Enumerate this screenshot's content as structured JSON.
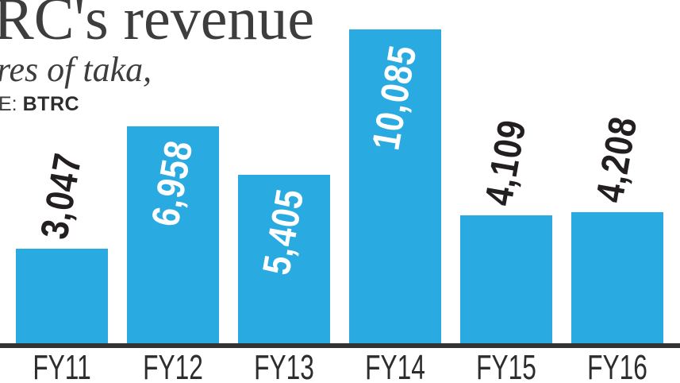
{
  "colors": {
    "bar": "#29abe2",
    "axis": "#333333",
    "title_text": "#3d3d3d",
    "value_label_dark": "#231f20",
    "value_label_light": "#ffffff",
    "category_label": "#2d2d2d"
  },
  "chart_data": {
    "type": "bar",
    "title": "RC's revenue",
    "subtitle": "res of taka,",
    "source_prefix": "E:",
    "source_name": "BTRC",
    "categories": [
      "FY11",
      "FY12",
      "FY13",
      "FY14",
      "FY15",
      "FY16"
    ],
    "values": [
      3047,
      6958,
      5405,
      10085,
      4109,
      4208
    ],
    "value_labels": [
      "3,047",
      "6,958",
      "5,405",
      "10,085",
      "4,109",
      "4,208"
    ],
    "label_inside": [
      false,
      true,
      true,
      true,
      false,
      false
    ],
    "ylim": [
      0,
      10085
    ],
    "grid": false,
    "legend": false,
    "orientation": "vertical",
    "value_label_rotation": "vertical bottom-to-top, tilted ~10deg clockwise"
  }
}
